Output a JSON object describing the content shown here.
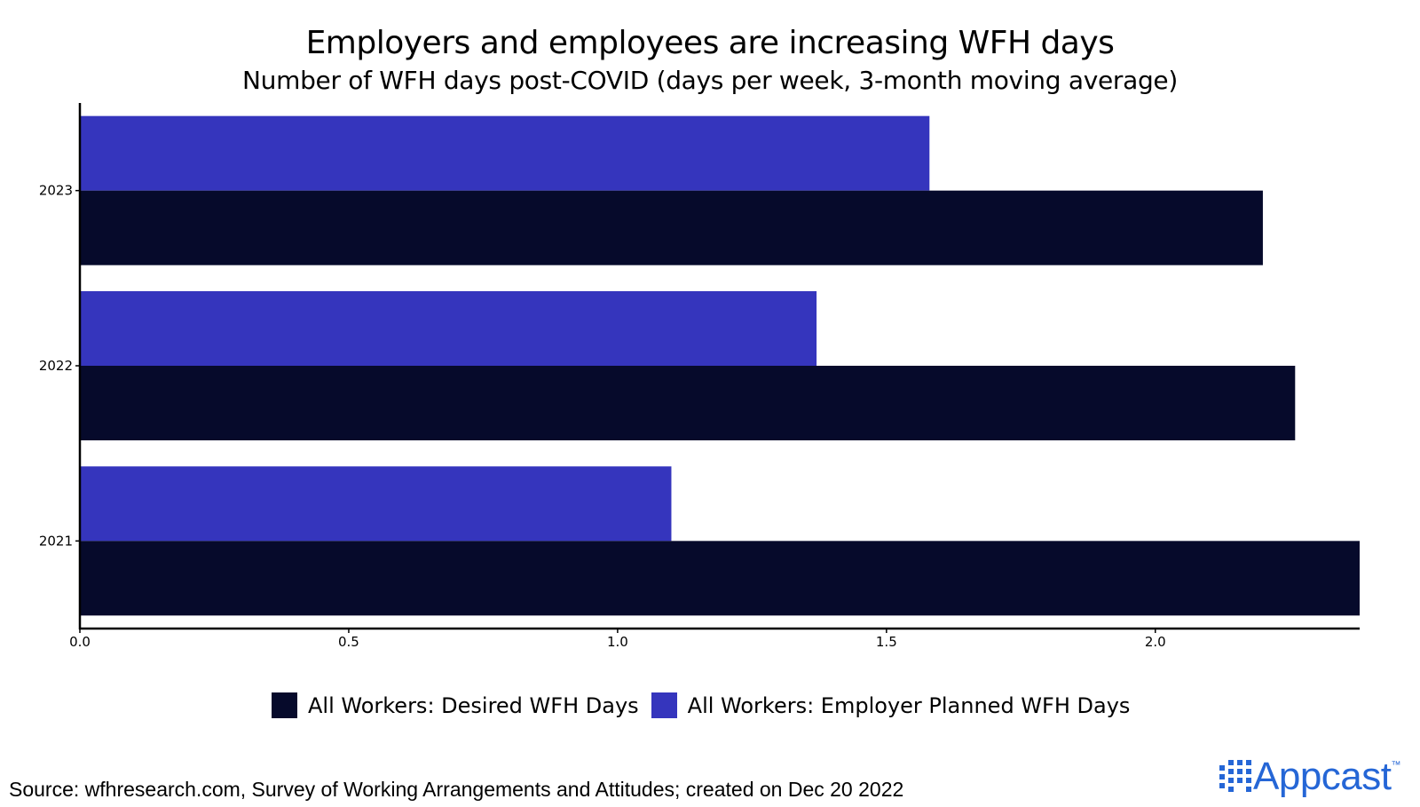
{
  "chart_data": {
    "type": "bar",
    "orientation": "horizontal",
    "title": "Employers and employees are increasing WFH days",
    "subtitle": "Number of WFH days post-COVID (days per week, 3-month moving average)",
    "categories": [
      "2023",
      "2022",
      "2021"
    ],
    "series": [
      {
        "name": "All Workers: Employer Planned WFH Days",
        "values": [
          1.58,
          1.37,
          1.1
        ],
        "color": "#3535bd"
      },
      {
        "name": "All Workers: Desired WFH Days",
        "values": [
          2.2,
          2.26,
          2.38
        ],
        "color": "#060a2b"
      }
    ],
    "x_ticks": [
      "0.0",
      "0.5",
      "1.0",
      "1.5",
      "2.0"
    ],
    "xlim": [
      0,
      2.38
    ],
    "legend_position": "bottom",
    "grid": false
  },
  "legend": [
    {
      "label": "All Workers: Desired WFH Days",
      "color": "#060a2b"
    },
    {
      "label": "All Workers: Employer Planned WFH Days",
      "color": "#3535bd"
    }
  ],
  "source": "Source: wfhresearch.com, Survey of Working Arrangements and Attitudes; created on Dec 20 2022",
  "logo": {
    "text": "Appcast",
    "tm": "™",
    "color": "#2566d6"
  }
}
